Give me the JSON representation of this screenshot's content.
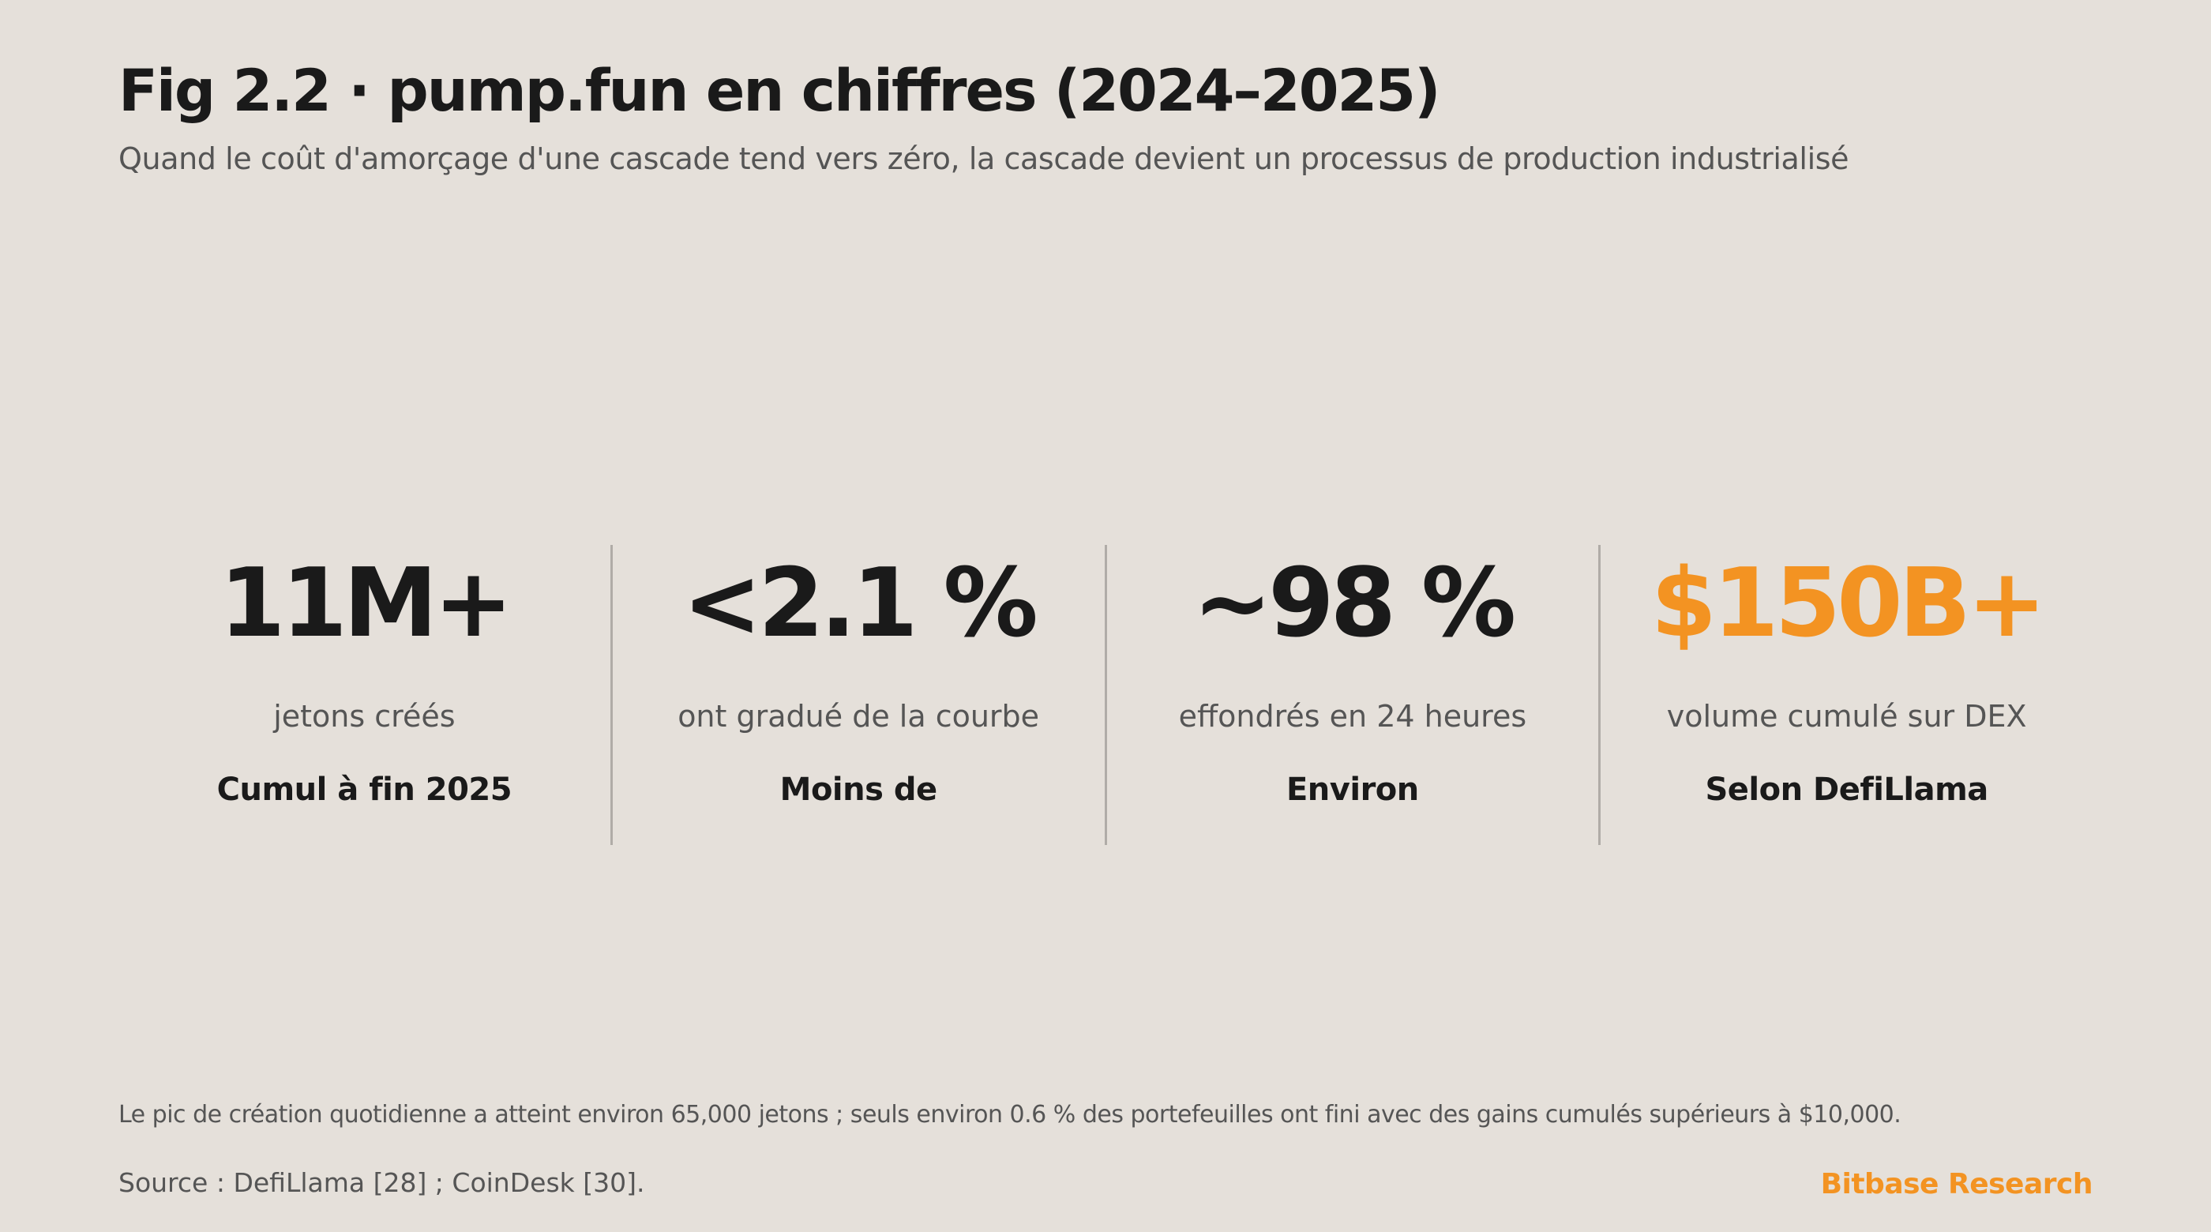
{
  "header": {
    "title": "Fig 2.2 · pump.fun en chiffres (2024–2025)",
    "subtitle": "Quand le coût d'amorçage d'une cascade tend vers zéro, la cascade devient un processus de production industrialisé"
  },
  "stats": [
    {
      "value": "11M+",
      "label": "jetons créés",
      "note": "Cumul à fin 2025",
      "color": "#1a1a1a"
    },
    {
      "value": "<2.1 %",
      "label": "ont gradué de la courbe",
      "note": "Moins de",
      "color": "#1a1a1a"
    },
    {
      "value": "~98 %",
      "label": "effondrés en 24 heures",
      "note": "Environ",
      "color": "#1a1a1a"
    },
    {
      "value": "$150B+",
      "label": "volume cumulé sur DEX",
      "note": "Selon DefiLlama",
      "color": "#f39322"
    }
  ],
  "footer": {
    "footnote": "Le pic de création quotidienne a atteint environ 65,000 jetons ; seuls environ 0.6 % des portefeuilles ont fini avec des gains cumulés supérieurs à $10,000.",
    "source": "Source : DefiLlama [28] ; CoinDesk [30].",
    "brand": "Bitbase Research"
  },
  "colors": {
    "background": "#e5e0da",
    "text": "#1a1a1a",
    "muted": "#555555",
    "accent": "#f39322",
    "divider": "#b0aca7"
  }
}
